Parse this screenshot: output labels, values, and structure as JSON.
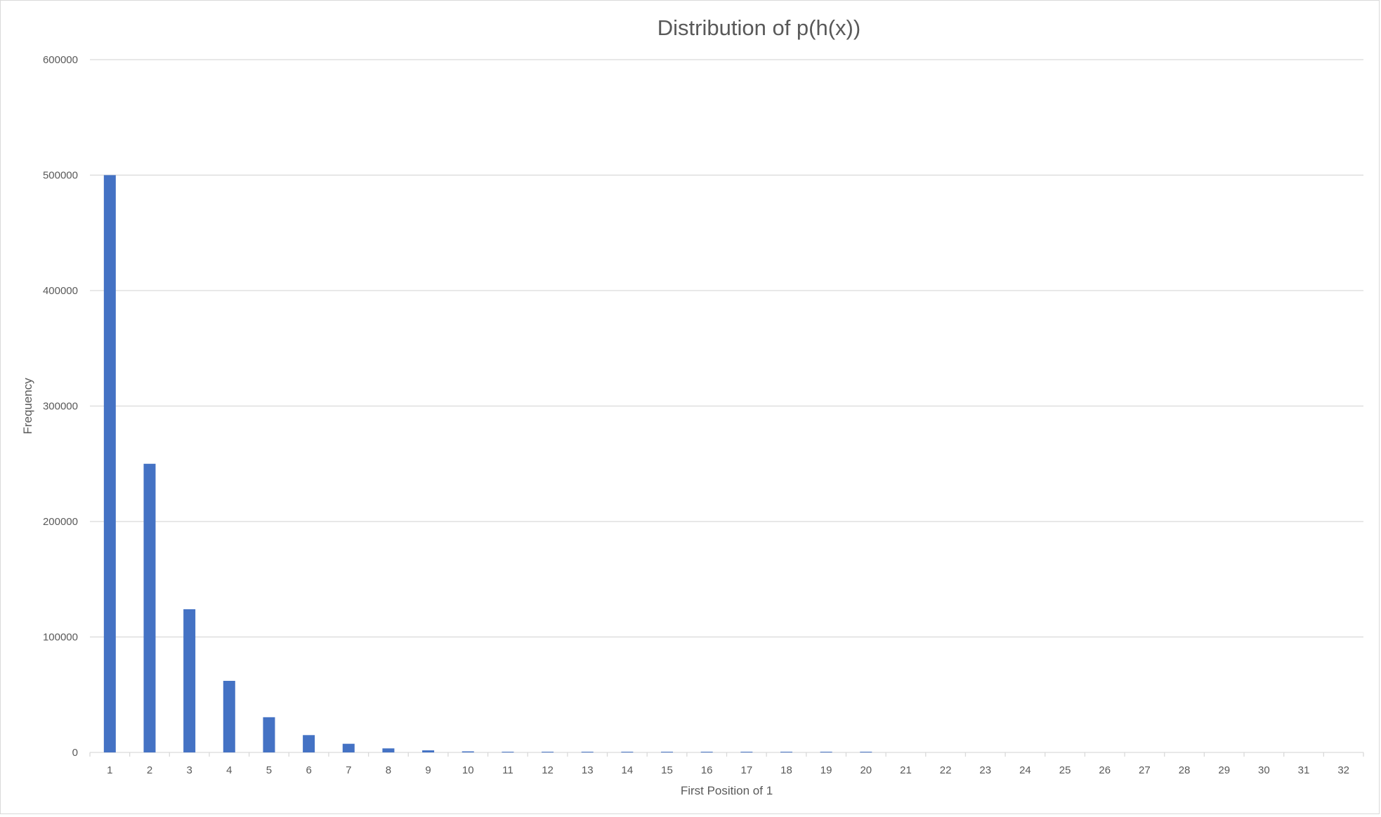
{
  "chart_data": {
    "type": "bar",
    "title": "Distribution of p(h(x))",
    "xlabel": "First Position of 1",
    "ylabel": "Frequency",
    "ylim": [
      0,
      600000
    ],
    "yticks": [
      "0",
      "100000",
      "200000",
      "300000",
      "400000",
      "500000",
      "600000"
    ],
    "grid": true,
    "legend": "none",
    "bar_color": "#4472C4",
    "categories": [
      "1",
      "2",
      "3",
      "4",
      "5",
      "6",
      "7",
      "8",
      "9",
      "10",
      "11",
      "12",
      "13",
      "14",
      "15",
      "16",
      "17",
      "18",
      "19",
      "20",
      "21",
      "22",
      "23",
      "24",
      "25",
      "26",
      "27",
      "28",
      "29",
      "30",
      "31",
      "32"
    ],
    "series": [
      {
        "values": [
          500000,
          250000,
          124000,
          62000,
          30500,
          15000,
          7500,
          3500,
          1800,
          900,
          450,
          230,
          115,
          60,
          30,
          15,
          8,
          4,
          2,
          1,
          0,
          0,
          0,
          0,
          0,
          0,
          0,
          0,
          0,
          0,
          0,
          0
        ]
      }
    ]
  }
}
